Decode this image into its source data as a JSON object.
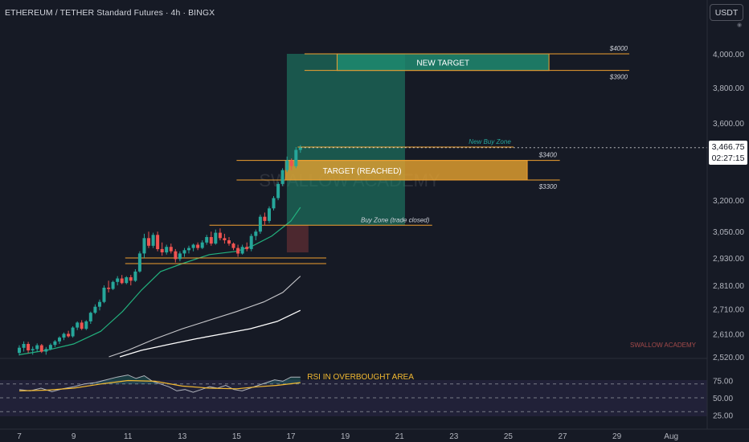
{
  "header": {
    "title": "ETHEREUM / TETHER Standard Futures · 4h · BINGX",
    "currency_button": "USDT"
  },
  "last_price": {
    "value": "3,466.75",
    "countdown": "02:27:15"
  },
  "watermarks": {
    "center": "SWALLOW ACADEMY",
    "corner": "SWALLOW ACADEMY"
  },
  "colors": {
    "background": "#161a25",
    "bull": "#26a69a",
    "bear": "#ef5350",
    "target_green": "#1f8a70",
    "target_orange": "#e3a12f",
    "zone_line": "#f0a030",
    "ma_fast": "#22b07d",
    "ma_mid": "#c8c8cc",
    "ma_slow": "#ffffff",
    "rsi_line": "#b0b3bb",
    "rsi_ma": "#f2b931"
  },
  "chart_data": [
    {
      "type": "candlestick",
      "title": "ETHEREUM / TETHER Standard Futures · 4h · BINGX",
      "xlabel": "",
      "ylabel": "",
      "x_ticks": [
        "7",
        "9",
        "11",
        "13",
        "15",
        "17",
        "19",
        "21",
        "23",
        "25",
        "27",
        "29",
        "Aug"
      ],
      "y_ticks": [
        "2,520.00",
        "2,610.00",
        "2,710.00",
        "2,810.00",
        "2,930.00",
        "3,050.00",
        "3,200.00",
        "3,400.00",
        "3,600.00",
        "3,800.00",
        "4,000.00"
      ],
      "ylim": [
        2520,
        4050
      ],
      "y_scale": "log",
      "grid": false,
      "last_price": 3466.75,
      "candles": [
        [
          2535,
          2565,
          2525,
          2555
        ],
        [
          2555,
          2580,
          2540,
          2570
        ],
        [
          2570,
          2578,
          2535,
          2545
        ],
        [
          2545,
          2560,
          2528,
          2550
        ],
        [
          2550,
          2572,
          2540,
          2565
        ],
        [
          2565,
          2570,
          2535,
          2540
        ],
        [
          2540,
          2558,
          2528,
          2550
        ],
        [
          2550,
          2572,
          2545,
          2566
        ],
        [
          2566,
          2585,
          2558,
          2580
        ],
        [
          2580,
          2600,
          2570,
          2595
        ],
        [
          2595,
          2615,
          2585,
          2610
        ],
        [
          2610,
          2622,
          2595,
          2600
        ],
        [
          2600,
          2640,
          2595,
          2635
        ],
        [
          2635,
          2660,
          2625,
          2655
        ],
        [
          2655,
          2665,
          2625,
          2630
        ],
        [
          2630,
          2665,
          2625,
          2660
        ],
        [
          2660,
          2700,
          2650,
          2695
        ],
        [
          2695,
          2730,
          2690,
          2720
        ],
        [
          2720,
          2750,
          2705,
          2740
        ],
        [
          2740,
          2810,
          2735,
          2800
        ],
        [
          2800,
          2830,
          2780,
          2795
        ],
        [
          2795,
          2830,
          2790,
          2825
        ],
        [
          2825,
          2850,
          2810,
          2840
        ],
        [
          2840,
          2855,
          2815,
          2820
        ],
        [
          2820,
          2850,
          2815,
          2845
        ],
        [
          2845,
          2855,
          2810,
          2830
        ],
        [
          2830,
          2880,
          2825,
          2870
        ],
        [
          2870,
          2960,
          2865,
          2950
        ],
        [
          2950,
          3040,
          2930,
          3020
        ],
        [
          3020,
          3050,
          2975,
          2985
        ],
        [
          2985,
          3045,
          2975,
          3035
        ],
        [
          3035,
          3050,
          2960,
          2970
        ],
        [
          2970,
          3000,
          2940,
          2955
        ],
        [
          2955,
          2990,
          2945,
          2980
        ],
        [
          2980,
          2995,
          2950,
          2960
        ],
        [
          2960,
          2970,
          2910,
          2925
        ],
        [
          2925,
          2960,
          2915,
          2950
        ],
        [
          2950,
          2975,
          2935,
          2965
        ],
        [
          2965,
          2985,
          2950,
          2975
        ],
        [
          2975,
          2995,
          2960,
          2990
        ],
        [
          2990,
          3000,
          2965,
          2975
        ],
        [
          2975,
          3010,
          2970,
          3000
        ],
        [
          3000,
          3035,
          2990,
          3025
        ],
        [
          3025,
          3050,
          2985,
          2995
        ],
        [
          2995,
          3060,
          2990,
          3045
        ],
        [
          3045,
          3065,
          3010,
          3020
        ],
        [
          3020,
          3040,
          2995,
          3010
        ],
        [
          3010,
          3025,
          2985,
          2995
        ],
        [
          2995,
          3000,
          2965,
          2975
        ],
        [
          2975,
          2990,
          2935,
          2950
        ],
        [
          2950,
          2990,
          2945,
          2980
        ],
        [
          2980,
          3000,
          2960,
          2970
        ],
        [
          2970,
          3040,
          2960,
          3030
        ],
        [
          3030,
          3060,
          3010,
          3050
        ],
        [
          3050,
          3130,
          3040,
          3120
        ],
        [
          3120,
          3140,
          3080,
          3100
        ],
        [
          3100,
          3170,
          3090,
          3160
        ],
        [
          3160,
          3220,
          3150,
          3210
        ],
        [
          3210,
          3290,
          3200,
          3280
        ],
        [
          3280,
          3360,
          3270,
          3350
        ],
        [
          3350,
          3420,
          3340,
          3400
        ],
        [
          3400,
          3410,
          3350,
          3370
        ],
        [
          3370,
          3470,
          3360,
          3455
        ],
        [
          3455,
          3480,
          3440,
          3466.75
        ]
      ],
      "moving_averages": {
        "fast": [
          [
            7.0,
            2528
          ],
          [
            8.0,
            2545
          ],
          [
            9.0,
            2570
          ],
          [
            10.0,
            2620
          ],
          [
            10.8,
            2700
          ],
          [
            11.5,
            2790
          ],
          [
            12.2,
            2870
          ],
          [
            13.0,
            2905
          ],
          [
            14.0,
            2945
          ],
          [
            15.0,
            2960
          ],
          [
            15.6,
            2985
          ],
          [
            16.3,
            3030
          ],
          [
            17.0,
            3100
          ],
          [
            17.35,
            3165
          ]
        ],
        "mid": [
          [
            10.3,
            2520
          ],
          [
            11.0,
            2545
          ],
          [
            12.0,
            2590
          ],
          [
            13.0,
            2630
          ],
          [
            14.0,
            2665
          ],
          [
            15.0,
            2700
          ],
          [
            16.0,
            2740
          ],
          [
            16.7,
            2780
          ],
          [
            17.35,
            2850
          ]
        ],
        "slow": [
          [
            10.7,
            2520
          ],
          [
            11.5,
            2545
          ],
          [
            12.5,
            2568
          ],
          [
            13.5,
            2590
          ],
          [
            14.5,
            2610
          ],
          [
            15.5,
            2630
          ],
          [
            16.5,
            2660
          ],
          [
            17.35,
            2705
          ]
        ]
      },
      "annotations": [
        {
          "kind": "level",
          "price": 4000,
          "from_x": 17.5,
          "to_x": 19.2,
          "label": "$4000"
        },
        {
          "kind": "box",
          "label": "NEW TARGET",
          "price_top": 4000,
          "price_bottom": 3900,
          "from_x": 18.7,
          "to_x": 26.5
        },
        {
          "kind": "level",
          "price": 3900,
          "from_x": 17.5,
          "to_x": 19.2,
          "label": "$3900"
        },
        {
          "kind": "level",
          "price": 3470,
          "label": "New Buy Zone"
        },
        {
          "kind": "box",
          "label": "TARGET (REACHED)",
          "price_top": 3400,
          "price_bottom": 3300,
          "from_x": 16.8,
          "to_x": 25.7
        },
        {
          "kind": "level",
          "price": 3400,
          "label": "$3400"
        },
        {
          "kind": "level",
          "price": 3300,
          "label": "$3300"
        },
        {
          "kind": "level",
          "price": 3080,
          "label": "Buy Zone (trade closed)"
        },
        {
          "kind": "level",
          "price": 2930
        },
        {
          "kind": "level",
          "price": 2905
        },
        {
          "kind": "position",
          "entry": 3080,
          "target": 4000,
          "stop": 2955,
          "from_x": 16.0,
          "to_x": 21.2
        }
      ]
    },
    {
      "type": "line",
      "title": "RSI",
      "y_ticks": [
        "75.00",
        "50.00",
        "25.00"
      ],
      "ylim": [
        20,
        100
      ],
      "overbought": 70,
      "oversold": 30,
      "annotation": "RSI IN OVERBOUGHT AREA",
      "series": [
        {
          "values": [
            [
              7.0,
              62
            ],
            [
              7.4,
              60
            ],
            [
              7.8,
              64
            ],
            [
              8.2,
              59
            ],
            [
              8.6,
              63
            ],
            [
              9.0,
              66
            ],
            [
              9.4,
              70
            ],
            [
              9.8,
              72
            ],
            [
              10.2,
              76
            ],
            [
              10.6,
              80
            ],
            [
              11.0,
              83
            ],
            [
              11.3,
              78
            ],
            [
              11.6,
              82
            ],
            [
              11.9,
              74
            ],
            [
              12.2,
              70
            ],
            [
              12.5,
              66
            ],
            [
              12.8,
              60
            ],
            [
              13.1,
              62
            ],
            [
              13.4,
              58
            ],
            [
              13.7,
              62
            ],
            [
              14.0,
              66
            ],
            [
              14.3,
              64
            ],
            [
              14.6,
              68
            ],
            [
              14.9,
              62
            ],
            [
              15.2,
              60
            ],
            [
              15.5,
              64
            ],
            [
              15.8,
              68
            ],
            [
              16.1,
              72
            ],
            [
              16.4,
              76
            ],
            [
              16.7,
              74
            ],
            [
              17.0,
              80
            ],
            [
              17.35,
              80
            ]
          ]
        },
        {
          "values": [
            [
              7.0,
              60
            ],
            [
              8.0,
              61
            ],
            [
              9.0,
              64
            ],
            [
              10.0,
              70
            ],
            [
              11.0,
              75
            ],
            [
              12.0,
              74
            ],
            [
              13.0,
              67
            ],
            [
              14.0,
              64
            ],
            [
              15.0,
              63
            ],
            [
              15.8,
              66
            ],
            [
              16.5,
              68
            ],
            [
              17.35,
              72
            ]
          ]
        }
      ]
    }
  ]
}
